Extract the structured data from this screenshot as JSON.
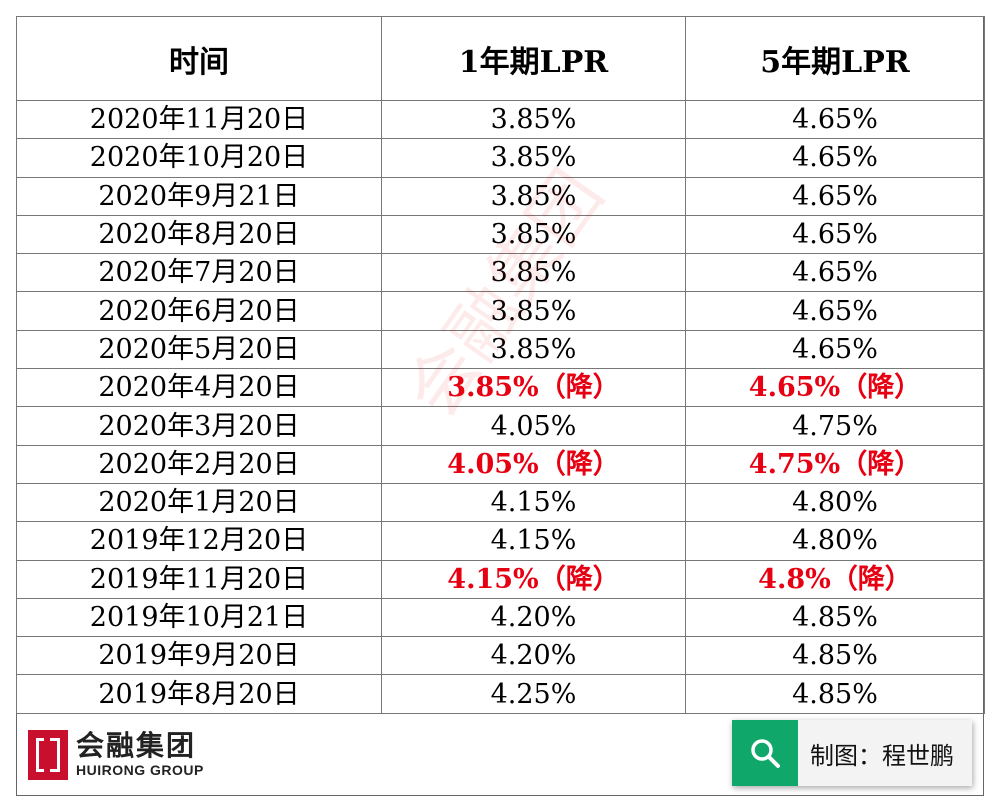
{
  "table": {
    "headers": [
      "时间",
      "1年期LPR",
      "5年期LPR"
    ],
    "rows": [
      {
        "date": "2020年11月20日",
        "lpr1": "3.85%",
        "lpr5": "4.65%",
        "highlight": false
      },
      {
        "date": "2020年10月20日",
        "lpr1": "3.85%",
        "lpr5": "4.65%",
        "highlight": false
      },
      {
        "date": "2020年9月21日",
        "lpr1": "3.85%",
        "lpr5": "4.65%",
        "highlight": false
      },
      {
        "date": "2020年8月20日",
        "lpr1": "3.85%",
        "lpr5": "4.65%",
        "highlight": false
      },
      {
        "date": "2020年7月20日",
        "lpr1": "3.85%",
        "lpr5": "4.65%",
        "highlight": false
      },
      {
        "date": "2020年6月20日",
        "lpr1": "3.85%",
        "lpr5": "4.65%",
        "highlight": false
      },
      {
        "date": "2020年5月20日",
        "lpr1": "3.85%",
        "lpr5": "4.65%",
        "highlight": false
      },
      {
        "date": "2020年4月20日",
        "lpr1": "3.85%（降）",
        "lpr5": "4.65%（降）",
        "highlight": true
      },
      {
        "date": "2020年3月20日",
        "lpr1": "4.05%",
        "lpr5": "4.75%",
        "highlight": false
      },
      {
        "date": "2020年2月20日",
        "lpr1": "4.05%（降）",
        "lpr5": "4.75%（降）",
        "highlight": true
      },
      {
        "date": "2020年1月20日",
        "lpr1": "4.15%",
        "lpr5": "4.80%",
        "highlight": false
      },
      {
        "date": "2019年12月20日",
        "lpr1": "4.15%",
        "lpr5": "4.80%",
        "highlight": false
      },
      {
        "date": "2019年11月20日",
        "lpr1": "4.15%（降）",
        "lpr5": "4.8%（降）",
        "highlight": true
      },
      {
        "date": "2019年10月21日",
        "lpr1": "4.20%",
        "lpr5": "4.85%",
        "highlight": false
      },
      {
        "date": "2019年9月20日",
        "lpr1": "4.20%",
        "lpr5": "4.85%",
        "highlight": false
      },
      {
        "date": "2019年8月20日",
        "lpr1": "4.25%",
        "lpr5": "4.85%",
        "highlight": false
      }
    ]
  },
  "logo": {
    "name_cn": "会融集团",
    "name_en": "HUIRONG GROUP"
  },
  "credit": {
    "icon": "search-icon",
    "text": "制图：程世鹏"
  },
  "watermark": "会融集团",
  "colors": {
    "highlight": "#e60012",
    "logo_red": "#c8102e",
    "credit_green": "#0fa76a"
  }
}
